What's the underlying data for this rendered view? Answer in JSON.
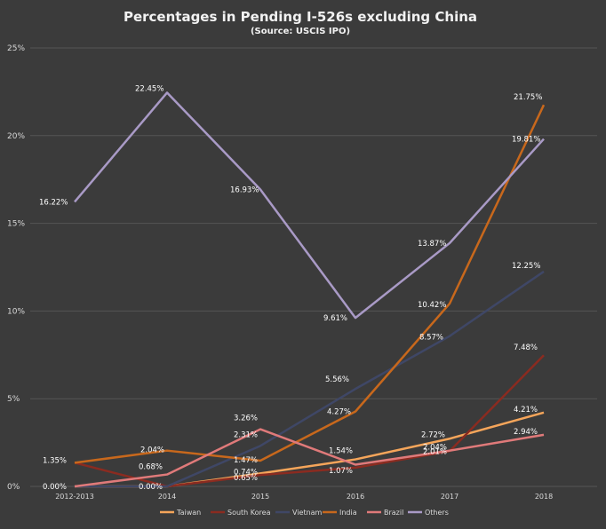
{
  "chart_data": {
    "type": "line",
    "title": "Percentages in Pending I-526s excluding China",
    "subtitle": "(Source: USCIS IPO)",
    "categories": [
      "2012-2013",
      "2014",
      "2015",
      "2016",
      "2017",
      "2018"
    ],
    "ylim": [
      0,
      25
    ],
    "yticks": [
      "0%",
      "5%",
      "10%",
      "15%",
      "20%",
      "25%"
    ],
    "grid": true,
    "legend_position": "bottom",
    "series": [
      {
        "name": "Taiwan",
        "color": "#f5a55a",
        "values": [
          0.0,
          0.0,
          0.74,
          1.54,
          2.72,
          4.21
        ],
        "labels": [
          "0.00%",
          "0.00%",
          "0.74%",
          "1.54%",
          "2.72%",
          "4.21%"
        ]
      },
      {
        "name": "South Korea",
        "color": "#8b2b20",
        "values": [
          1.35,
          0.0,
          0.65,
          1.07,
          2.01,
          7.48
        ],
        "labels": [
          "1.35%",
          "",
          "0.65%",
          "1.07%",
          "2.01%",
          "7.48%"
        ]
      },
      {
        "name": "Vietnam",
        "color": "#3f4766",
        "values": [
          0.0,
          0.0,
          2.31,
          5.56,
          8.57,
          12.25
        ],
        "labels": [
          "",
          "",
          "2.31%",
          "5.56%",
          "8.57%",
          "12.25%"
        ]
      },
      {
        "name": "India",
        "color": "#c8681c",
        "values": [
          1.35,
          2.04,
          1.47,
          4.27,
          10.42,
          21.75
        ],
        "labels": [
          "",
          "2.04%",
          "1.47%",
          "4.27%",
          "10.42%",
          "21.75%"
        ]
      },
      {
        "name": "Brazil",
        "color": "#e07a7a",
        "values": [
          0.0,
          0.68,
          3.26,
          1.24,
          2.04,
          2.94
        ],
        "labels": [
          "",
          "0.68%",
          "3.26%",
          "",
          "2.04%",
          "2.94%"
        ]
      },
      {
        "name": "Others",
        "color": "#a99ac6",
        "values": [
          16.22,
          22.45,
          16.93,
          9.61,
          13.87,
          19.81
        ],
        "labels": [
          "16.22%",
          "22.45%",
          "16.93%",
          "9.61%",
          "13.87%",
          "19.81%"
        ]
      }
    ]
  }
}
